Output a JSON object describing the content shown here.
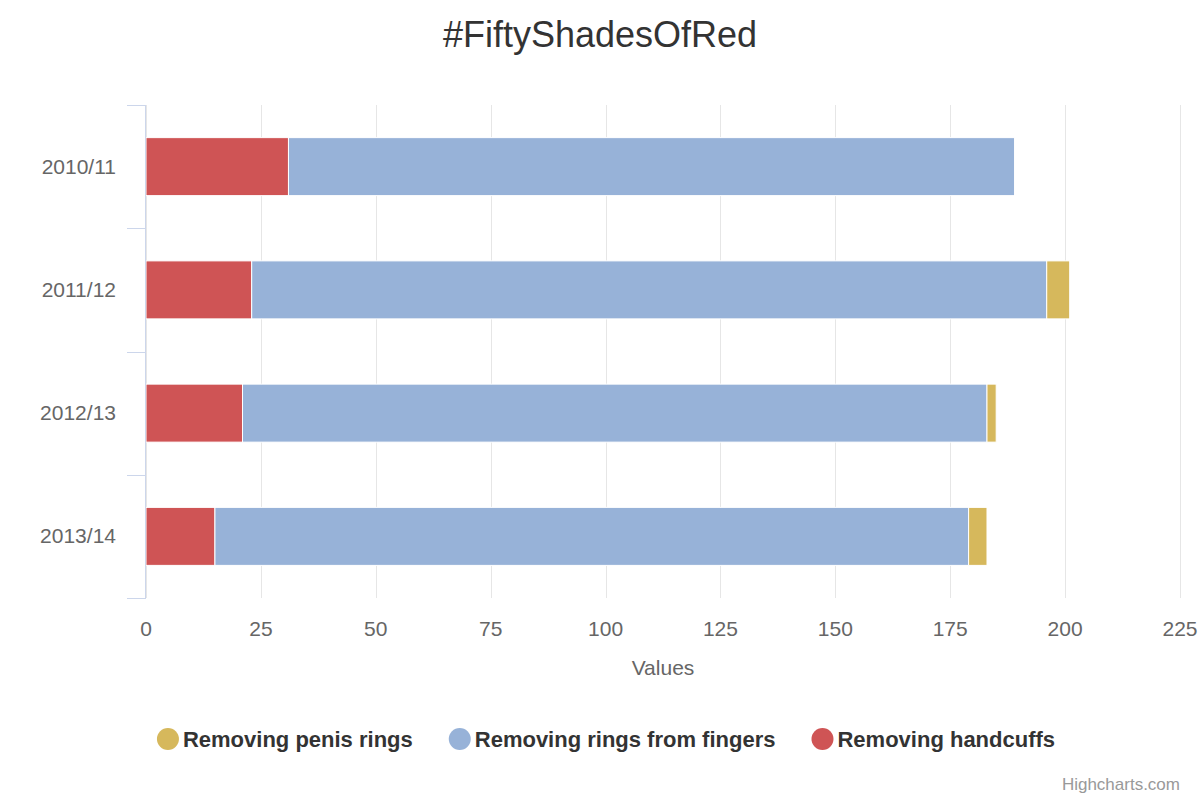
{
  "chart_data": {
    "type": "bar",
    "title": "#FiftyShadesOfRed",
    "orientation": "horizontal",
    "stacked": true,
    "grid": true,
    "legend": "bottom",
    "categories": [
      "2010/11",
      "2011/12",
      "2012/13",
      "2013/14"
    ],
    "series": [
      {
        "name": "Removing penis rings",
        "color": "#d6b85c",
        "values": [
          0,
          5,
          2,
          4
        ]
      },
      {
        "name": "Removing rings from fingers",
        "color": "#97b2d8",
        "values": [
          158,
          173,
          162,
          164
        ]
      },
      {
        "name": "Removing handcuffs",
        "color": "#cf5455",
        "values": [
          31,
          23,
          21,
          15
        ]
      }
    ],
    "xlabel": "Values",
    "xlim": [
      0,
      225
    ],
    "xticks": [
      0,
      25,
      50,
      75,
      100,
      125,
      150,
      175,
      200,
      225
    ],
    "credits": "Highcharts.com"
  }
}
